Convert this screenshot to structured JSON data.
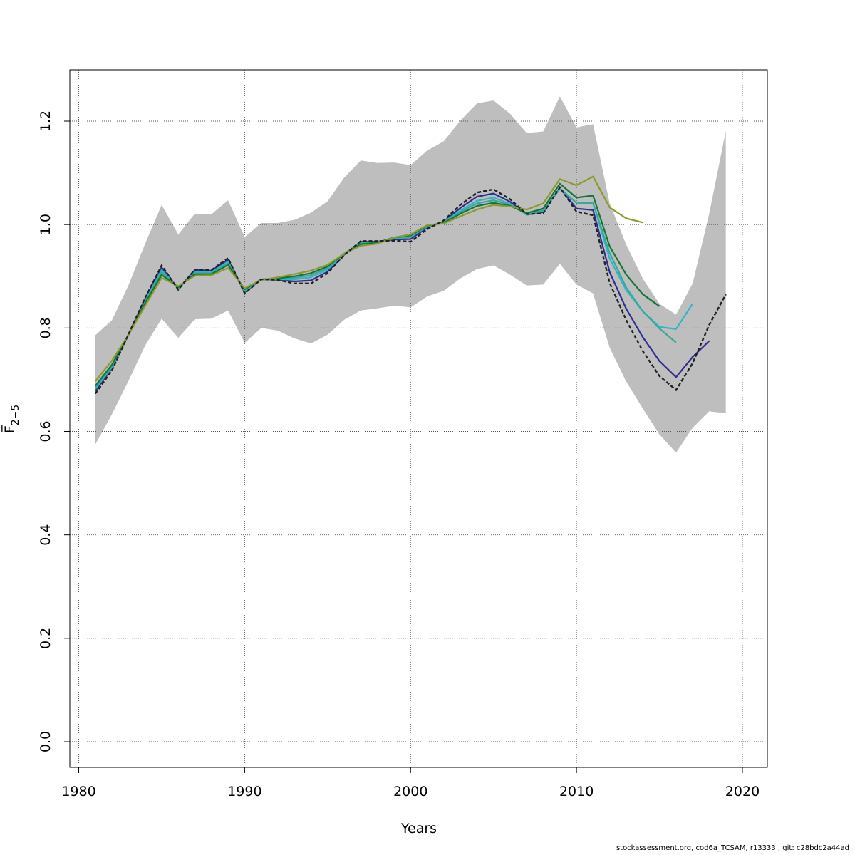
{
  "chart_data": {
    "type": "line",
    "title": "",
    "xlabel": "Years",
    "ylabel": "F̅",
    "ylabel_subscript": "2−5",
    "xlim": [
      1980,
      2020
    ],
    "ylim": [
      0.0,
      1.2
    ],
    "x_ticks": [
      1980,
      1990,
      2000,
      2010,
      2020
    ],
    "y_ticks": [
      0.0,
      0.2,
      0.4,
      0.6,
      0.8,
      1.0,
      1.2
    ],
    "grid": true,
    "band": {
      "color": "#bebebe",
      "years": [
        1981,
        1982,
        1983,
        1984,
        1985,
        1986,
        1987,
        1988,
        1989,
        1990,
        1991,
        1992,
        1993,
        1994,
        1995,
        1996,
        1997,
        1998,
        1999,
        2000,
        2001,
        2002,
        2003,
        2004,
        2005,
        2006,
        2007,
        2008,
        2009,
        2010,
        2011,
        2012,
        2013,
        2014,
        2015,
        2016,
        2017,
        2018,
        2019
      ],
      "upper": [
        0.786,
        0.815,
        0.883,
        0.963,
        1.038,
        0.981,
        1.021,
        1.02,
        1.047,
        0.976,
        1.003,
        1.003,
        1.009,
        1.023,
        1.045,
        1.091,
        1.124,
        1.119,
        1.12,
        1.115,
        1.143,
        1.161,
        1.201,
        1.234,
        1.24,
        1.214,
        1.177,
        1.18,
        1.248,
        1.188,
        1.194,
        1.041,
        0.961,
        0.895,
        0.847,
        0.826,
        0.886,
        1.021,
        1.181
      ],
      "lower": [
        0.575,
        0.633,
        0.698,
        0.766,
        0.818,
        0.781,
        0.817,
        0.818,
        0.834,
        0.771,
        0.8,
        0.795,
        0.78,
        0.77,
        0.787,
        0.816,
        0.834,
        0.838,
        0.843,
        0.84,
        0.861,
        0.872,
        0.896,
        0.914,
        0.921,
        0.903,
        0.882,
        0.884,
        0.924,
        0.884,
        0.867,
        0.762,
        0.696,
        0.644,
        0.594,
        0.559,
        0.607,
        0.639,
        0.635
      ]
    },
    "series": [
      {
        "color": "#222222",
        "dashed": true,
        "x": [
          1981,
          1982,
          1983,
          1984,
          1985,
          1986,
          1987,
          1988,
          1989,
          1990,
          1991,
          1992,
          1993,
          1994,
          1995,
          1996,
          1997,
          1998,
          1999,
          2000,
          2001,
          2002,
          2003,
          2004,
          2005,
          2006,
          2007,
          2008,
          2009,
          2010,
          2011,
          2012,
          2013,
          2014,
          2015,
          2016,
          2017,
          2018,
          2019
        ],
        "values": [
          0.673,
          0.718,
          0.788,
          0.858,
          0.921,
          0.874,
          0.913,
          0.912,
          0.935,
          0.867,
          0.894,
          0.893,
          0.886,
          0.886,
          0.906,
          0.941,
          0.968,
          0.968,
          0.969,
          0.967,
          0.991,
          1.008,
          1.038,
          1.062,
          1.068,
          1.049,
          1.02,
          1.022,
          1.072,
          1.025,
          1.018,
          0.887,
          0.815,
          0.755,
          0.707,
          0.68,
          0.732,
          0.806,
          0.865
        ]
      },
      {
        "color": "#2e2e8f",
        "dashed": false,
        "x": [
          1981,
          1982,
          1983,
          1984,
          1985,
          1986,
          1987,
          1988,
          1989,
          1990,
          1991,
          1992,
          1993,
          1994,
          1995,
          1996,
          1997,
          1998,
          1999,
          2000,
          2001,
          2002,
          2003,
          2004,
          2005,
          2006,
          2007,
          2008,
          2009,
          2010,
          2011,
          2012,
          2013,
          2014,
          2015,
          2016,
          2017,
          2018
        ],
        "values": [
          0.678,
          0.722,
          0.788,
          0.856,
          0.917,
          0.876,
          0.912,
          0.911,
          0.932,
          0.869,
          0.894,
          0.893,
          0.89,
          0.892,
          0.909,
          0.942,
          0.967,
          0.967,
          0.971,
          0.972,
          0.994,
          1.006,
          1.032,
          1.054,
          1.06,
          1.044,
          1.019,
          1.024,
          1.071,
          1.031,
          1.028,
          0.908,
          0.837,
          0.782,
          0.736,
          0.705,
          0.744,
          0.775
        ]
      },
      {
        "color": "#30b5c8",
        "dashed": false,
        "x": [
          1981,
          1982,
          1983,
          1984,
          1985,
          1986,
          1987,
          1988,
          1989,
          1990,
          1991,
          1992,
          1993,
          1994,
          1995,
          1996,
          1997,
          1998,
          1999,
          2000,
          2001,
          2002,
          2003,
          2004,
          2005,
          2006,
          2007,
          2008,
          2009,
          2010,
          2011,
          2012,
          2013,
          2014,
          2015,
          2016,
          2017
        ],
        "values": [
          0.682,
          0.724,
          0.787,
          0.853,
          0.912,
          0.877,
          0.908,
          0.908,
          0.928,
          0.871,
          0.894,
          0.894,
          0.894,
          0.898,
          0.913,
          0.943,
          0.966,
          0.966,
          0.973,
          0.976,
          0.996,
          1.005,
          1.027,
          1.046,
          1.052,
          1.04,
          1.019,
          1.026,
          1.069,
          1.042,
          1.042,
          0.934,
          0.873,
          0.832,
          0.802,
          0.798,
          0.847
        ]
      },
      {
        "color": "#3ba79a",
        "dashed": false,
        "x": [
          1981,
          1982,
          1983,
          1984,
          1985,
          1986,
          1987,
          1988,
          1989,
          1990,
          1991,
          1992,
          1993,
          1994,
          1995,
          1996,
          1997,
          1998,
          1999,
          2000,
          2001,
          2002,
          2003,
          2004,
          2005,
          2006,
          2007,
          2008,
          2009,
          2010,
          2011,
          2012,
          2013,
          2014,
          2015,
          2016
        ],
        "values": [
          0.684,
          0.726,
          0.787,
          0.851,
          0.908,
          0.878,
          0.906,
          0.906,
          0.925,
          0.873,
          0.894,
          0.895,
          0.897,
          0.902,
          0.916,
          0.944,
          0.964,
          0.966,
          0.974,
          0.978,
          0.997,
          1.004,
          1.024,
          1.041,
          1.047,
          1.038,
          1.02,
          1.028,
          1.07,
          1.042,
          1.041,
          0.945,
          0.878,
          0.832,
          0.799,
          0.772
        ]
      },
      {
        "color": "#137538",
        "dashed": false,
        "x": [
          1981,
          1982,
          1983,
          1984,
          1985,
          1986,
          1987,
          1988,
          1989,
          1990,
          1991,
          1992,
          1993,
          1994,
          1995,
          1996,
          1997,
          1998,
          1999,
          2000,
          2001,
          2002,
          2003,
          2004,
          2005,
          2006,
          2007,
          2008,
          2009,
          2010,
          2011,
          2012,
          2013,
          2014,
          2015
        ],
        "values": [
          0.688,
          0.729,
          0.787,
          0.848,
          0.903,
          0.879,
          0.904,
          0.904,
          0.922,
          0.875,
          0.894,
          0.896,
          0.9,
          0.906,
          0.919,
          0.944,
          0.962,
          0.965,
          0.975,
          0.979,
          0.998,
          1.003,
          1.021,
          1.036,
          1.042,
          1.036,
          1.022,
          1.031,
          1.079,
          1.052,
          1.056,
          0.958,
          0.903,
          0.865,
          0.842
        ]
      },
      {
        "color": "#8c9a2c",
        "dashed": false,
        "x": [
          1981,
          1982,
          1983,
          1984,
          1985,
          1986,
          1987,
          1988,
          1989,
          1990,
          1991,
          1992,
          1993,
          1994,
          1995,
          1996,
          1997,
          1998,
          1999,
          2000,
          2001,
          2002,
          2003,
          2004,
          2005,
          2006,
          2007,
          2008,
          2009,
          2010,
          2011,
          2012,
          2013,
          2014
        ],
        "values": [
          0.697,
          0.737,
          0.787,
          0.843,
          0.897,
          0.881,
          0.901,
          0.902,
          0.916,
          0.877,
          0.893,
          0.898,
          0.904,
          0.911,
          0.922,
          0.944,
          0.959,
          0.963,
          0.975,
          0.981,
          0.999,
          1.002,
          1.016,
          1.029,
          1.038,
          1.035,
          1.029,
          1.041,
          1.088,
          1.076,
          1.093,
          1.033,
          1.012,
          1.004
        ]
      }
    ]
  },
  "footer": "stockassessment.org, cod6a_TCSAM, r13333 , git: c28bdc2a44ad"
}
